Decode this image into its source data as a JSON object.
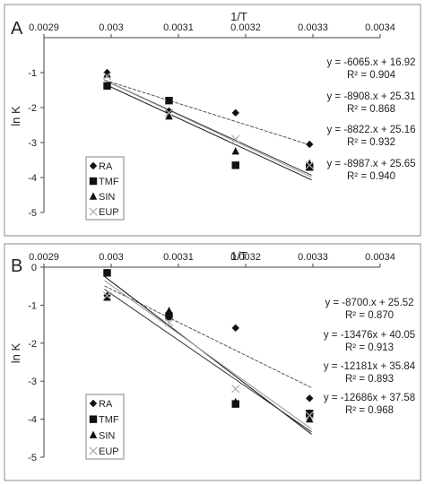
{
  "chart_data": [
    {
      "type": "scatter",
      "panel_label": "A",
      "xlabel": "1/T",
      "ylabel": "ln K",
      "xlim": [
        0.0029,
        0.0034
      ],
      "ylim": [
        -5,
        0
      ],
      "x_ticks": [
        "0.0029",
        "0.003",
        "0.0031",
        "0.0032",
        "0.0033",
        "0.0034"
      ],
      "y_ticks": [
        "-1",
        "-2",
        "-3",
        "-4",
        "-5"
      ],
      "x_axis_position": "top",
      "grid": false,
      "legend_position": "lower-left",
      "series": [
        {
          "name": "RA",
          "marker": "diamond",
          "x": [
            0.002994,
            0.003086,
            0.003185,
            0.003295
          ],
          "y": [
            -1.0,
            -2.1,
            -2.15,
            -3.05
          ],
          "fit": {
            "slope": -6065,
            "intercept": 16.92
          },
          "equation": "y = -6065.x + 16.92",
          "r2": "R² = 0.904"
        },
        {
          "name": "TMF",
          "marker": "square",
          "x": [
            0.002994,
            0.003086,
            0.003185,
            0.003295
          ],
          "y": [
            -1.38,
            -1.8,
            -3.65,
            -3.7
          ],
          "fit": {
            "slope": -8908,
            "intercept": 25.31
          },
          "equation": "y = -8908.x + 25.31",
          "r2": "R² = 0.868"
        },
        {
          "name": "SIN",
          "marker": "triangle",
          "x": [
            0.002994,
            0.003086,
            0.003185,
            0.003295
          ],
          "y": [
            -1.05,
            -2.25,
            -3.25,
            -3.6
          ],
          "fit": {
            "slope": -8822,
            "intercept": 25.16
          },
          "equation": "y = -8822.x + 25.16",
          "r2": "R² = 0.932"
        },
        {
          "name": "EUP",
          "marker": "cross",
          "x": [
            0.002994,
            0.003086,
            0.003185,
            0.003295
          ],
          "y": [
            -1.1,
            -2.15,
            -2.9,
            -3.65
          ],
          "fit": {
            "slope": -8987,
            "intercept": 25.65
          },
          "equation": "y = -8987.x + 25.65",
          "r2": "R² = 0.940"
        }
      ]
    },
    {
      "type": "scatter",
      "panel_label": "B",
      "xlabel": "1/T",
      "ylabel": "ln K",
      "xlim": [
        0.0029,
        0.0034
      ],
      "ylim": [
        -5,
        0
      ],
      "x_ticks": [
        "0.0029",
        "0.003",
        "0.0031",
        "0.0032",
        "0.0033",
        "0.0034"
      ],
      "y_ticks": [
        "0",
        "-1",
        "-2",
        "-3",
        "-4",
        "-5"
      ],
      "x_axis_position": "top",
      "grid": false,
      "legend_position": "lower-left",
      "series": [
        {
          "name": "RA",
          "marker": "diamond",
          "x": [
            0.002994,
            0.003086,
            0.003185,
            0.003295
          ],
          "y": [
            -0.75,
            -1.2,
            -1.6,
            -3.45
          ],
          "fit": {
            "slope": -8700,
            "intercept": 25.52
          },
          "equation": "y = -8700.x + 25.52",
          "r2": "R² = 0.870"
        },
        {
          "name": "TMF",
          "marker": "square",
          "x": [
            0.002994,
            0.003086,
            0.003185,
            0.003295
          ],
          "y": [
            -0.15,
            -1.3,
            -3.6,
            -3.85
          ],
          "fit": {
            "slope": -13476,
            "intercept": 40.05
          },
          "equation": "y = -13476x + 40.05",
          "r2": "R² = 0.913"
        },
        {
          "name": "SIN",
          "marker": "triangle",
          "x": [
            0.002994,
            0.003086,
            0.003185,
            0.003295
          ],
          "y": [
            -0.8,
            -1.15,
            -3.55,
            -4.0
          ],
          "fit": {
            "slope": -12181,
            "intercept": 35.84
          },
          "equation": "y = -12181x + 35.84",
          "r2": "R² = 0.893"
        },
        {
          "name": "EUP",
          "marker": "cross",
          "x": [
            0.002994,
            0.003086,
            0.003185,
            0.003295
          ],
          "y": [
            -0.75,
            -1.45,
            -3.2,
            -3.9
          ],
          "fit": {
            "slope": -12686,
            "intercept": 37.58
          },
          "equation": "y = -12686x + 37.58",
          "r2": "R² = 0.968"
        }
      ]
    }
  ]
}
